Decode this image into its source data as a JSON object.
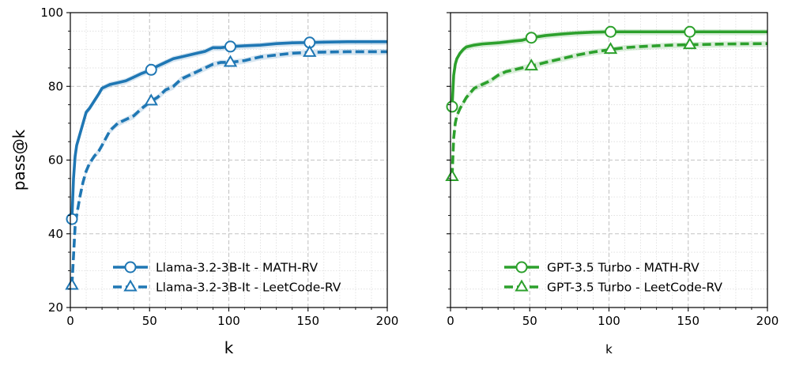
{
  "chart_data": [
    {
      "type": "line",
      "xlabel": "k",
      "ylabel": "pass@k",
      "xlim": [
        0,
        200
      ],
      "ylim": [
        20,
        100
      ],
      "xticks": [
        "0",
        "50",
        "100",
        "150",
        "200"
      ],
      "yticks": [
        "20",
        "40",
        "60",
        "80",
        "100"
      ],
      "grid": true,
      "legend_position": "lower-right",
      "series": [
        {
          "name": "Llama-3.2-3B-It - MATH-RV",
          "color": "#1f77b4",
          "line_style": "solid",
          "marker": "circle",
          "marker_x": [
            1,
            51,
            101,
            151
          ],
          "points": [
            [
              1,
              44
            ],
            [
              2,
              55
            ],
            [
              3,
              61
            ],
            [
              4,
              64
            ],
            [
              6,
              67
            ],
            [
              8,
              70
            ],
            [
              10,
              73
            ],
            [
              12,
              74
            ],
            [
              15,
              76
            ],
            [
              18,
              78
            ],
            [
              20,
              79.5
            ],
            [
              25,
              80.5
            ],
            [
              30,
              81
            ],
            [
              35,
              81.5
            ],
            [
              40,
              82.5
            ],
            [
              45,
              83.5
            ],
            [
              51,
              84.5
            ],
            [
              55,
              85.5
            ],
            [
              60,
              86.5
            ],
            [
              65,
              87.5
            ],
            [
              70,
              88
            ],
            [
              75,
              88.5
            ],
            [
              80,
              89
            ],
            [
              85,
              89.5
            ],
            [
              90,
              90.5
            ],
            [
              95,
              90.5
            ],
            [
              101,
              90.8
            ],
            [
              110,
              91
            ],
            [
              120,
              91.2
            ],
            [
              130,
              91.6
            ],
            [
              140,
              91.8
            ],
            [
              151,
              91.9
            ],
            [
              160,
              92
            ],
            [
              175,
              92.1
            ],
            [
              200,
              92.1
            ]
          ]
        },
        {
          "name": "Llama-3.2-3B-It - LeetCode-RV",
          "color": "#1f77b4",
          "line_style": "dashed",
          "marker": "triangle",
          "marker_x": [
            1,
            51,
            101,
            151
          ],
          "points": [
            [
              1,
              26
            ],
            [
              2,
              34
            ],
            [
              3,
              42
            ],
            [
              4,
              45
            ],
            [
              6,
              50
            ],
            [
              8,
              54
            ],
            [
              10,
              57
            ],
            [
              12,
              59
            ],
            [
              15,
              61
            ],
            [
              18,
              62.5
            ],
            [
              20,
              64
            ],
            [
              25,
              68
            ],
            [
              30,
              70
            ],
            [
              35,
              71
            ],
            [
              40,
              72
            ],
            [
              45,
              74
            ],
            [
              51,
              76
            ],
            [
              55,
              77
            ],
            [
              60,
              79
            ],
            [
              65,
              80
            ],
            [
              70,
              82
            ],
            [
              75,
              83
            ],
            [
              80,
              84
            ],
            [
              85,
              85
            ],
            [
              90,
              86
            ],
            [
              95,
              86.5
            ],
            [
              101,
              86.5
            ],
            [
              110,
              87
            ],
            [
              120,
              88
            ],
            [
              130,
              88.5
            ],
            [
              140,
              89
            ],
            [
              151,
              89.2
            ],
            [
              160,
              89.3
            ],
            [
              175,
              89.4
            ],
            [
              200,
              89.4
            ]
          ]
        }
      ]
    },
    {
      "type": "line",
      "xlabel": "k",
      "ylabel": "",
      "xlim": [
        0,
        200
      ],
      "ylim": [
        20,
        100
      ],
      "xticks": [
        "0",
        "50",
        "100",
        "150",
        "200"
      ],
      "yticks": [],
      "grid": true,
      "legend_position": "lower-right",
      "series": [
        {
          "name": "GPT-3.5 Turbo - MATH-RV",
          "color": "#2ca02c",
          "line_style": "solid",
          "marker": "circle",
          "marker_x": [
            1,
            51,
            101,
            151
          ],
          "points": [
            [
              1,
              74.5
            ],
            [
              2,
              83
            ],
            [
              3,
              86
            ],
            [
              4,
              87.5
            ],
            [
              6,
              89
            ],
            [
              8,
              90
            ],
            [
              10,
              90.7
            ],
            [
              15,
              91.2
            ],
            [
              20,
              91.5
            ],
            [
              30,
              91.8
            ],
            [
              40,
              92.3
            ],
            [
              45,
              92.5
            ],
            [
              51,
              93.2
            ],
            [
              60,
              93.8
            ],
            [
              70,
              94.2
            ],
            [
              80,
              94.5
            ],
            [
              90,
              94.7
            ],
            [
              101,
              94.8
            ],
            [
              120,
              94.8
            ],
            [
              151,
              94.8
            ],
            [
              175,
              94.8
            ],
            [
              200,
              94.8
            ]
          ]
        },
        {
          "name": "GPT-3.5 Turbo - LeetCode-RV",
          "color": "#2ca02c",
          "line_style": "dashed",
          "marker": "triangle",
          "marker_x": [
            1,
            51,
            101,
            151
          ],
          "points": [
            [
              1,
              55.5
            ],
            [
              2,
              66
            ],
            [
              3,
              70
            ],
            [
              4,
              72
            ],
            [
              6,
              74
            ],
            [
              8,
              75.5
            ],
            [
              10,
              77
            ],
            [
              12,
              78
            ],
            [
              15,
              79.5
            ],
            [
              20,
              80.5
            ],
            [
              25,
              81.5
            ],
            [
              30,
              83
            ],
            [
              35,
              84
            ],
            [
              40,
              84.5
            ],
            [
              45,
              85
            ],
            [
              51,
              85.5
            ],
            [
              60,
              86.5
            ],
            [
              70,
              87.5
            ],
            [
              80,
              88.5
            ],
            [
              90,
              89.3
            ],
            [
              101,
              90
            ],
            [
              110,
              90.5
            ],
            [
              120,
              90.8
            ],
            [
              130,
              91
            ],
            [
              140,
              91.2
            ],
            [
              151,
              91.3
            ],
            [
              175,
              91.5
            ],
            [
              200,
              91.6
            ]
          ]
        }
      ]
    }
  ]
}
